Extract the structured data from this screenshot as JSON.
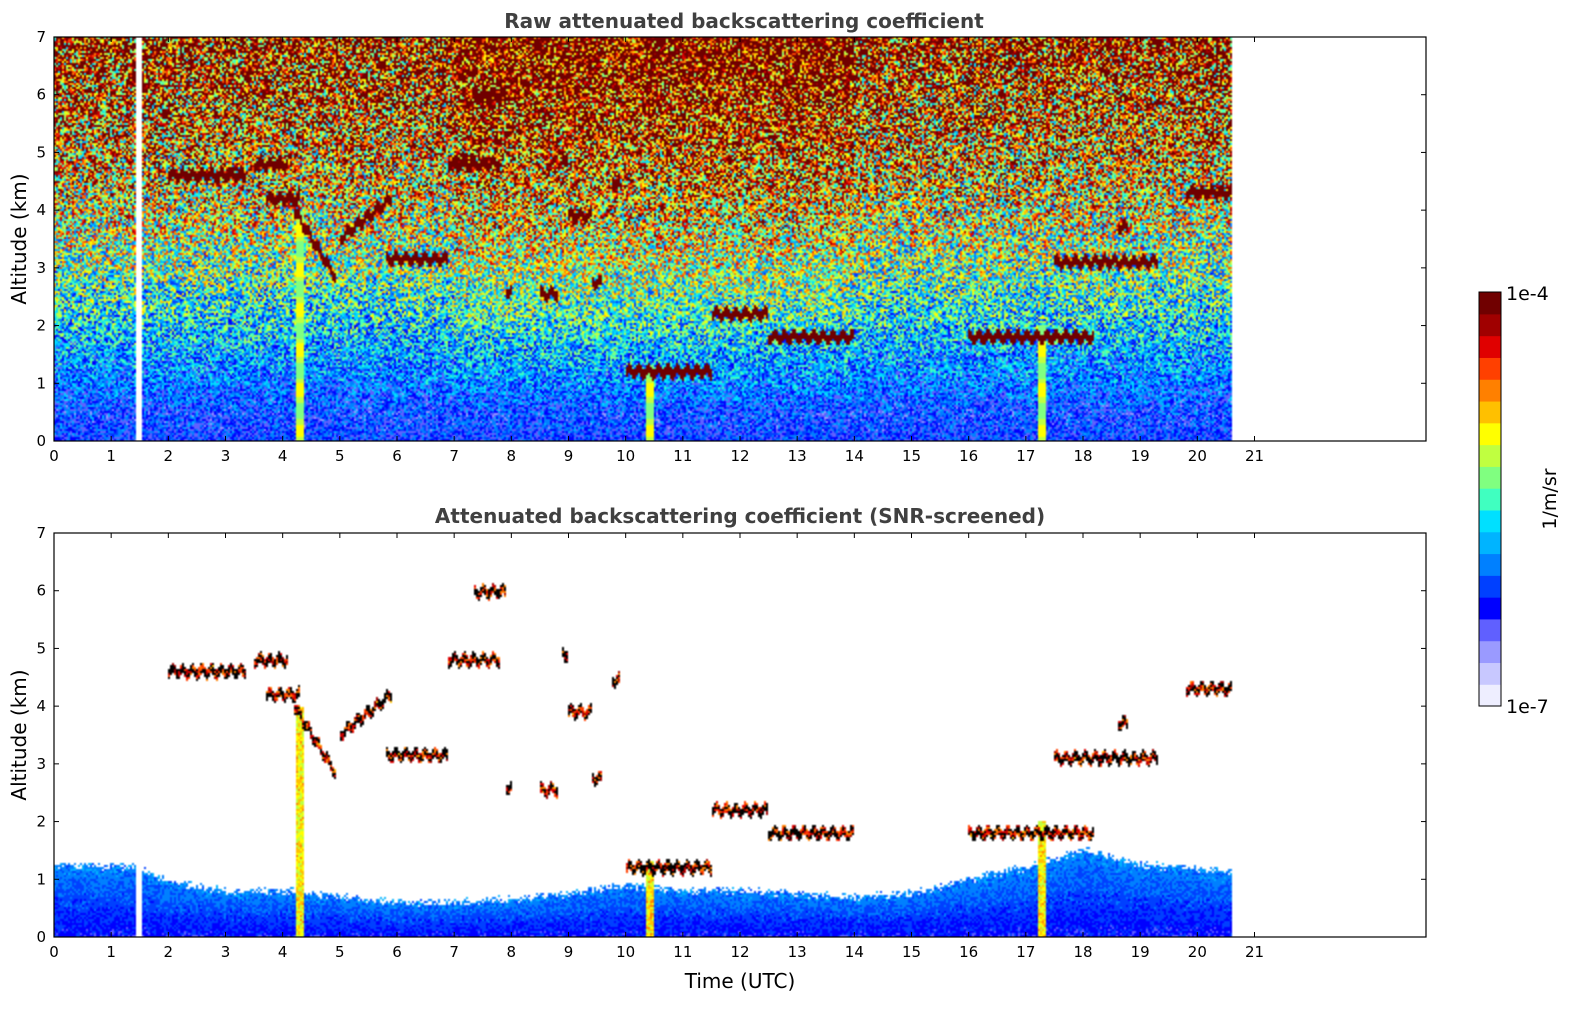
{
  "chart_data": [
    {
      "type": "heatmap",
      "title": "Raw attenuated backscattering coefficient",
      "xlabel": "",
      "ylabel": "Altitude (km)",
      "xlim": [
        0,
        24
      ],
      "ylim": [
        0,
        7
      ],
      "xticks": [
        "0",
        "1",
        "2",
        "3",
        "4",
        "5",
        "6",
        "7",
        "8",
        "9",
        "10",
        "11",
        "12",
        "13",
        "14",
        "15",
        "16",
        "17",
        "18",
        "19",
        "20",
        "21"
      ],
      "yticks": [
        "0",
        "1",
        "2",
        "3",
        "4",
        "5",
        "6",
        "7"
      ],
      "data_end_time": 20.6,
      "missing_data_intervals": [
        [
          1.43,
          1.55
        ]
      ],
      "background_profile": "log10 backscatter increasing with altitude: ~1e-6.3 near surface to ~1e-4.3 at 7 km; noisier aloft; daytime (7-14 UTC) higher aloft",
      "cloud_layers": [
        {
          "t_start": 2.0,
          "t_end": 3.35,
          "altitude_km": 4.6
        },
        {
          "t_start": 3.5,
          "t_end": 4.1,
          "altitude_km": 4.8
        },
        {
          "t_start": 3.7,
          "t_end": 4.3,
          "altitude_km": 4.2
        },
        {
          "t_start": 4.2,
          "t_end": 4.95,
          "altitude_km_start": 4.0,
          "altitude_km_end": 2.8
        },
        {
          "t_start": 5.0,
          "t_end": 5.9,
          "altitude_km_start": 3.5,
          "altitude_km_end": 4.2
        },
        {
          "t_start": 5.8,
          "t_end": 6.9,
          "altitude_km": 3.15
        },
        {
          "t_start": 7.35,
          "t_end": 7.9,
          "altitude_km": 5.98
        },
        {
          "t_start": 6.9,
          "t_end": 7.8,
          "altitude_km": 4.8
        },
        {
          "t_start": 7.9,
          "t_end": 8.0,
          "altitude_km": 2.6
        },
        {
          "t_start": 8.5,
          "t_end": 8.8,
          "altitude_km": 2.55
        },
        {
          "t_start": 8.9,
          "t_end": 9.0,
          "altitude_km": 4.9
        },
        {
          "t_start": 9.0,
          "t_end": 9.4,
          "altitude_km": 3.9
        },
        {
          "t_start": 9.4,
          "t_end": 9.6,
          "altitude_km": 2.75
        },
        {
          "t_start": 9.75,
          "t_end": 9.9,
          "altitude_km": 4.45
        },
        {
          "t_start": 10.0,
          "t_end": 11.5,
          "altitude_km": 1.2
        },
        {
          "t_start": 11.5,
          "t_end": 12.5,
          "altitude_km": 2.2
        },
        {
          "t_start": 12.5,
          "t_end": 14.0,
          "altitude_km": 1.8
        },
        {
          "t_start": 16.0,
          "t_end": 18.2,
          "altitude_km": 1.8
        },
        {
          "t_start": 17.5,
          "t_end": 19.3,
          "altitude_km": 3.1
        },
        {
          "t_start": 18.6,
          "t_end": 18.8,
          "altitude_km": 3.7
        },
        {
          "t_start": 19.8,
          "t_end": 20.6,
          "altitude_km": 4.3
        }
      ],
      "vertical_plumes": [
        {
          "t": 4.3,
          "top_km": 4.0
        },
        {
          "t": 10.42,
          "top_km": 1.3
        },
        {
          "t": 17.28,
          "top_km": 2.0
        }
      ]
    },
    {
      "type": "heatmap",
      "title": "Attenuated backscattering coefficient (SNR-screened)",
      "xlabel": "Time (UTC)",
      "ylabel": "Altitude (km)",
      "xlim": [
        0,
        24
      ],
      "ylim": [
        0,
        7
      ],
      "xticks": [
        "0",
        "1",
        "2",
        "3",
        "4",
        "5",
        "6",
        "7",
        "8",
        "9",
        "10",
        "11",
        "12",
        "13",
        "14",
        "15",
        "16",
        "17",
        "18",
        "19",
        "20",
        "21"
      ],
      "yticks": [
        "0",
        "1",
        "2",
        "3",
        "4",
        "5",
        "6",
        "7"
      ],
      "boundary_layer_top_km": [
        {
          "t": 0,
          "h": 1.25
        },
        {
          "t": 1.5,
          "h": 1.2
        },
        {
          "t": 2.0,
          "h": 0.95
        },
        {
          "t": 3.0,
          "h": 0.8
        },
        {
          "t": 4.0,
          "h": 0.8
        },
        {
          "t": 5.0,
          "h": 0.7
        },
        {
          "t": 6.0,
          "h": 0.6
        },
        {
          "t": 7.0,
          "h": 0.6
        },
        {
          "t": 8.0,
          "h": 0.65
        },
        {
          "t": 9.0,
          "h": 0.75
        },
        {
          "t": 10.0,
          "h": 0.9
        },
        {
          "t": 11.0,
          "h": 0.8
        },
        {
          "t": 12.0,
          "h": 0.8
        },
        {
          "t": 13.0,
          "h": 0.75
        },
        {
          "t": 14.0,
          "h": 0.7
        },
        {
          "t": 15.0,
          "h": 0.75
        },
        {
          "t": 16.0,
          "h": 1.0
        },
        {
          "t": 17.0,
          "h": 1.2
        },
        {
          "t": 18.0,
          "h": 1.5
        },
        {
          "t": 19.0,
          "h": 1.25
        },
        {
          "t": 20.6,
          "h": 1.15
        }
      ]
    }
  ],
  "colorbar": {
    "label": "1/m/sr",
    "max_label": "1e-4",
    "min_label": "1e-7",
    "scale": "log",
    "colors": [
      "#eeeeff",
      "#c8c8ff",
      "#9a9aff",
      "#6060ff",
      "#0000ff",
      "#0040ff",
      "#0080ff",
      "#00b4ff",
      "#00e0ff",
      "#40ffc0",
      "#80ff80",
      "#c0ff40",
      "#ffff00",
      "#ffc000",
      "#ff8000",
      "#ff4000",
      "#e00000",
      "#a00000",
      "#700000"
    ]
  },
  "colors": {
    "title": "#404040",
    "frame": "#000000"
  }
}
